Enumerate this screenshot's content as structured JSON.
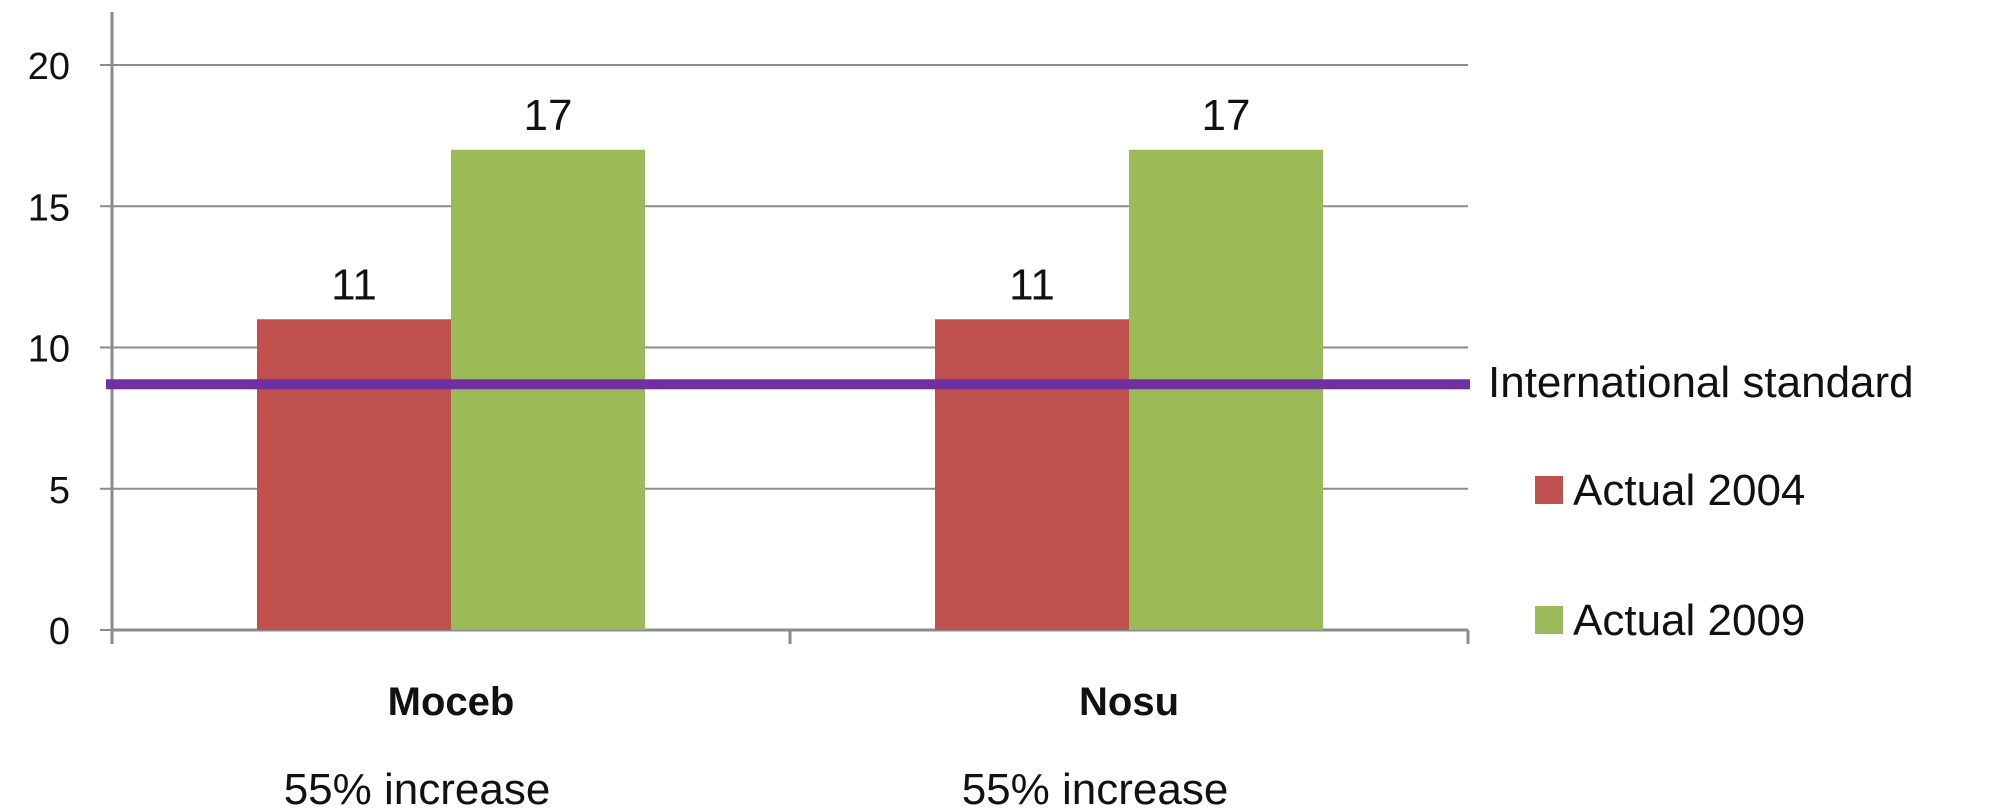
{
  "chart_data": {
    "type": "bar",
    "categories": [
      "Moceb",
      "Nosu"
    ],
    "category_notes": [
      "55% increase",
      "55% increase"
    ],
    "series": [
      {
        "name": "Actual 2004",
        "values": [
          11,
          11
        ],
        "color": "#c0504d"
      },
      {
        "name": "Actual 2009",
        "values": [
          17,
          17
        ],
        "color": "#9bbb59"
      }
    ],
    "reference_line": {
      "name": "International standard",
      "value": 8.7,
      "color": "#7030a0"
    },
    "ylim": [
      0,
      20
    ],
    "yticks": [
      0,
      5,
      10,
      15,
      20
    ],
    "grid": true,
    "legend": "right",
    "data_labels": true,
    "title": "",
    "xlabel": "",
    "ylabel": ""
  }
}
